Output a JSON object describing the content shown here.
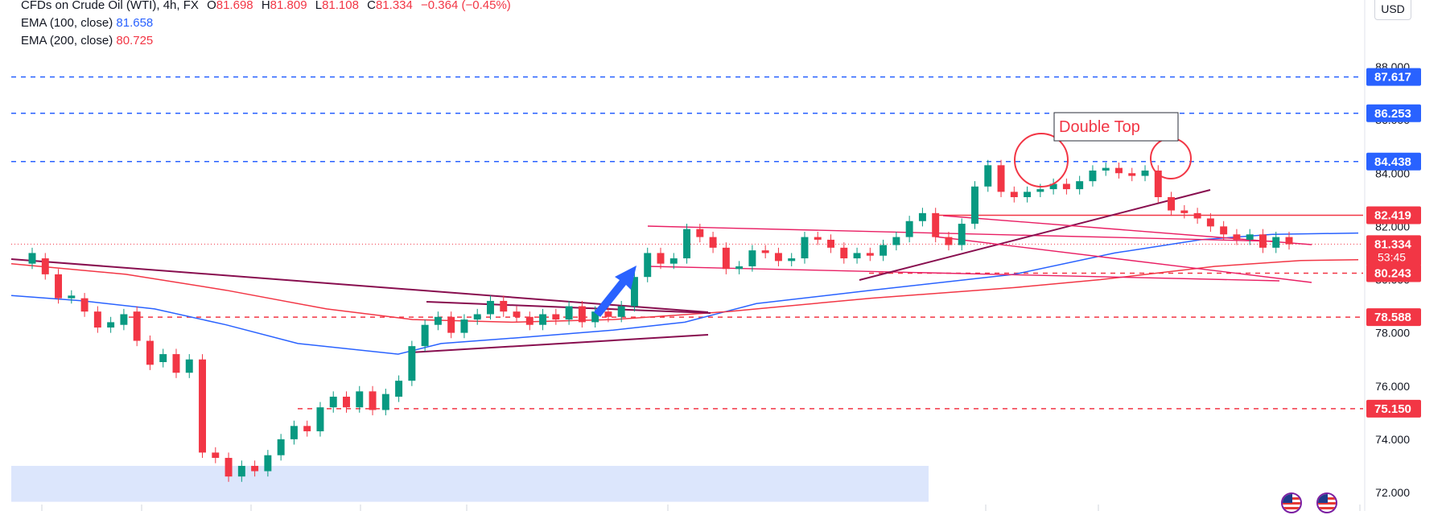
{
  "legend": {
    "symbol": "CFDs on Crude Oil (WTI)",
    "interval": "4h",
    "exchange": "FX",
    "open_label": "O",
    "open": "81.698",
    "high_label": "H",
    "high": "81.809",
    "low_label": "L",
    "low": "81.108",
    "close_label": "C",
    "close": "81.334",
    "change": "−0.364 (−0.45%)",
    "ema100_label": "EMA (100, close)",
    "ema100_value": "81.658",
    "ema200_label": "EMA (200, close)",
    "ema200_value": "80.725"
  },
  "currency": "USD",
  "colors": {
    "up": "#089981",
    "down": "#f23645",
    "ema100": "#2962ff",
    "ema200": "#f23645",
    "blue_level": "#2962ff",
    "red_level": "#f23645",
    "trendline": "#880e4f",
    "zone": "#d6e2fb"
  },
  "chart_data": {
    "type": "candlestick",
    "title": "CFDs on Crude Oil (WTI), 4h, FX",
    "y_range": [
      71.6,
      89.6
    ],
    "y_ticks": [
      "72.000",
      "74.000",
      "76.000",
      "78.000",
      "80.000",
      "82.000",
      "84.000",
      "86.000",
      "88.000"
    ],
    "price_labels": [
      {
        "value": 87.617,
        "text": "87.617",
        "style": "blue"
      },
      {
        "value": 86.253,
        "text": "86.253",
        "style": "blue"
      },
      {
        "value": 84.438,
        "text": "84.438",
        "style": "blue"
      },
      {
        "value": 82.419,
        "text": "82.419",
        "style": "red"
      },
      {
        "value": 81.334,
        "text": "81.334",
        "sub": "53:45",
        "style": "red"
      },
      {
        "value": 80.243,
        "text": "80.243",
        "style": "red"
      },
      {
        "value": 78.588,
        "text": "78.588",
        "style": "red"
      },
      {
        "value": 75.15,
        "text": "75.150",
        "style": "red"
      }
    ],
    "annotation": "Double Top",
    "support_zone": [
      71.65,
      73.0
    ],
    "ohlc_path": [
      [
        80.6,
        81.0
      ],
      [
        80.8,
        80.2
      ],
      [
        80.2,
        79.3
      ],
      [
        79.3,
        79.4
      ],
      [
        79.3,
        78.8
      ],
      [
        78.8,
        78.2
      ],
      [
        78.2,
        78.4
      ],
      [
        78.3,
        78.7
      ],
      [
        78.8,
        77.7
      ],
      [
        77.7,
        76.8
      ],
      [
        76.9,
        77.2
      ],
      [
        77.2,
        76.5
      ],
      [
        76.5,
        77.0
      ],
      [
        77.0,
        73.5
      ],
      [
        73.5,
        73.3
      ],
      [
        73.3,
        72.6
      ],
      [
        72.6,
        73.0
      ],
      [
        73.0,
        72.8
      ],
      [
        72.8,
        73.4
      ],
      [
        73.4,
        74.0
      ],
      [
        74.0,
        74.5
      ],
      [
        74.5,
        74.3
      ],
      [
        74.3,
        75.2
      ],
      [
        75.2,
        75.6
      ],
      [
        75.6,
        75.2
      ],
      [
        75.2,
        75.8
      ],
      [
        75.8,
        75.1
      ],
      [
        75.1,
        75.7
      ],
      [
        75.6,
        76.2
      ],
      [
        76.2,
        77.5
      ],
      [
        77.5,
        78.3
      ],
      [
        78.3,
        78.6
      ],
      [
        78.6,
        78.0
      ],
      [
        78.0,
        78.5
      ],
      [
        78.5,
        78.7
      ],
      [
        78.7,
        79.2
      ],
      [
        79.2,
        78.8
      ],
      [
        78.8,
        78.6
      ],
      [
        78.6,
        78.3
      ],
      [
        78.3,
        78.7
      ],
      [
        78.7,
        78.5
      ],
      [
        78.5,
        79.0
      ],
      [
        79.0,
        78.4
      ],
      [
        78.4,
        78.8
      ],
      [
        78.8,
        78.6
      ],
      [
        78.6,
        79.0
      ],
      [
        79.0,
        80.1
      ],
      [
        80.1,
        81.0
      ],
      [
        81.0,
        80.6
      ],
      [
        80.6,
        80.8
      ],
      [
        80.8,
        81.9
      ],
      [
        81.9,
        81.6
      ],
      [
        81.6,
        81.2
      ],
      [
        81.2,
        80.4
      ],
      [
        80.4,
        80.5
      ],
      [
        80.5,
        81.1
      ],
      [
        81.1,
        81.0
      ],
      [
        81.0,
        80.7
      ],
      [
        80.7,
        80.8
      ],
      [
        80.8,
        81.6
      ],
      [
        81.6,
        81.5
      ],
      [
        81.5,
        81.2
      ],
      [
        81.2,
        80.8
      ],
      [
        80.8,
        81.0
      ],
      [
        81.0,
        80.9
      ],
      [
        80.9,
        81.3
      ],
      [
        81.3,
        81.6
      ],
      [
        81.6,
        82.2
      ],
      [
        82.2,
        82.5
      ],
      [
        82.5,
        81.6
      ],
      [
        81.6,
        81.3
      ],
      [
        81.3,
        82.1
      ],
      [
        82.1,
        83.5
      ],
      [
        83.5,
        84.3
      ],
      [
        84.3,
        83.3
      ],
      [
        83.3,
        83.1
      ],
      [
        83.1,
        83.3
      ],
      [
        83.3,
        83.4
      ],
      [
        83.4,
        83.6
      ],
      [
        83.6,
        83.4
      ],
      [
        83.4,
        83.7
      ],
      [
        83.7,
        84.1
      ],
      [
        84.1,
        84.2
      ],
      [
        84.2,
        84.0
      ],
      [
        84.0,
        83.9
      ],
      [
        83.9,
        84.1
      ],
      [
        84.1,
        83.1
      ],
      [
        83.1,
        82.6
      ],
      [
        82.6,
        82.5
      ],
      [
        82.5,
        82.3
      ],
      [
        82.3,
        82.0
      ],
      [
        82.0,
        81.7
      ],
      [
        81.7,
        81.5
      ],
      [
        81.5,
        81.7
      ],
      [
        81.7,
        81.2
      ],
      [
        81.2,
        81.6
      ],
      [
        81.6,
        81.33
      ]
    ],
    "ema100": [
      [
        0,
        79.4
      ],
      [
        0.05,
        79.2
      ],
      [
        0.1,
        78.9
      ],
      [
        0.15,
        78.3
      ],
      [
        0.2,
        77.6
      ],
      [
        0.27,
        77.2
      ],
      [
        0.3,
        77.6
      ],
      [
        0.35,
        77.8
      ],
      [
        0.42,
        78.1
      ],
      [
        0.47,
        78.4
      ],
      [
        0.52,
        79.1
      ],
      [
        0.6,
        79.6
      ],
      [
        0.7,
        80.2
      ],
      [
        0.77,
        81.0
      ],
      [
        0.83,
        81.5
      ],
      [
        0.88,
        81.7
      ],
      [
        0.94,
        81.75
      ]
    ],
    "ema200": [
      [
        0,
        80.6
      ],
      [
        0.08,
        80.2
      ],
      [
        0.15,
        79.6
      ],
      [
        0.22,
        78.9
      ],
      [
        0.28,
        78.5
      ],
      [
        0.35,
        78.4
      ],
      [
        0.42,
        78.5
      ],
      [
        0.5,
        78.8
      ],
      [
        0.6,
        79.3
      ],
      [
        0.7,
        79.7
      ],
      [
        0.76,
        80.0
      ],
      [
        0.84,
        80.5
      ],
      [
        0.9,
        80.72
      ],
      [
        0.94,
        80.75
      ]
    ]
  }
}
